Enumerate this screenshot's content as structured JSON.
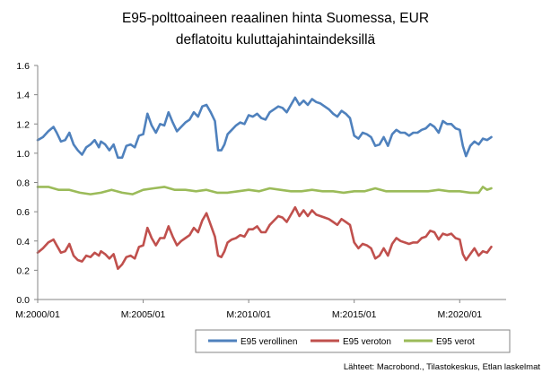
{
  "chart_data": {
    "type": "line",
    "title_line1": "E95-polttoaineen reaalinen hinta Suomessa, EUR",
    "title_line2": "deflatoitu kuluttajahintaindeksillä",
    "xlabel": "",
    "ylabel": "",
    "ylim": [
      0.0,
      1.6
    ],
    "xlim": [
      2000.0,
      2022.2
    ],
    "y_ticks": [
      "0.0",
      "0.2",
      "0.4",
      "0.6",
      "0.8",
      "1.0",
      "1.2",
      "1.4",
      "1.6"
    ],
    "x_ticks": [
      {
        "label": "M:2000/01",
        "value": 2000.0
      },
      {
        "label": "M:2005/01",
        "value": 2005.0
      },
      {
        "label": "M:2010/01",
        "value": 2010.0
      },
      {
        "label": "M:2015/01",
        "value": 2015.0
      },
      {
        "label": "M:2020/01",
        "value": 2020.0
      }
    ],
    "grid": false,
    "legend_position": "bottom-right",
    "source_note": "Lähteet: Macrobond., Tilastokeskus, Etlan laskelmat",
    "series": [
      {
        "name": "E95 verollinen",
        "color": "#4f81bd",
        "x": [
          2000.0,
          2000.25,
          2000.5,
          2000.75,
          2000.9,
          2001.1,
          2001.3,
          2001.5,
          2001.7,
          2001.9,
          2002.1,
          2002.3,
          2002.5,
          2002.7,
          2002.9,
          2003.0,
          2003.2,
          2003.4,
          2003.6,
          2003.8,
          2004.0,
          2004.2,
          2004.4,
          2004.6,
          2004.8,
          2005.0,
          2005.2,
          2005.4,
          2005.6,
          2005.8,
          2006.0,
          2006.2,
          2006.4,
          2006.6,
          2006.8,
          2007.0,
          2007.2,
          2007.4,
          2007.6,
          2007.8,
          2008.0,
          2008.2,
          2008.4,
          2008.55,
          2008.7,
          2008.85,
          2009.0,
          2009.2,
          2009.4,
          2009.6,
          2009.8,
          2010.0,
          2010.2,
          2010.4,
          2010.6,
          2010.8,
          2011.0,
          2011.2,
          2011.4,
          2011.6,
          2011.8,
          2012.0,
          2012.2,
          2012.4,
          2012.6,
          2012.8,
          2013.0,
          2013.2,
          2013.4,
          2013.6,
          2013.8,
          2014.0,
          2014.2,
          2014.4,
          2014.6,
          2014.8,
          2015.0,
          2015.2,
          2015.4,
          2015.6,
          2015.8,
          2016.0,
          2016.2,
          2016.4,
          2016.6,
          2016.8,
          2017.0,
          2017.2,
          2017.4,
          2017.6,
          2017.8,
          2018.0,
          2018.2,
          2018.4,
          2018.6,
          2018.8,
          2019.0,
          2019.2,
          2019.4,
          2019.6,
          2019.8,
          2020.0,
          2020.15,
          2020.3,
          2020.5,
          2020.7,
          2020.9,
          2021.1,
          2021.3,
          2021.5
        ],
        "values": [
          1.09,
          1.11,
          1.15,
          1.18,
          1.14,
          1.08,
          1.09,
          1.14,
          1.06,
          1.02,
          0.99,
          1.04,
          1.06,
          1.09,
          1.04,
          1.08,
          1.06,
          1.02,
          1.06,
          0.97,
          0.97,
          1.05,
          1.06,
          1.04,
          1.12,
          1.13,
          1.27,
          1.19,
          1.14,
          1.2,
          1.19,
          1.28,
          1.21,
          1.15,
          1.18,
          1.21,
          1.23,
          1.28,
          1.25,
          1.32,
          1.33,
          1.28,
          1.22,
          1.02,
          1.02,
          1.06,
          1.13,
          1.16,
          1.19,
          1.21,
          1.2,
          1.26,
          1.25,
          1.27,
          1.24,
          1.23,
          1.28,
          1.3,
          1.32,
          1.31,
          1.28,
          1.33,
          1.38,
          1.33,
          1.36,
          1.33,
          1.37,
          1.35,
          1.34,
          1.32,
          1.3,
          1.27,
          1.25,
          1.29,
          1.27,
          1.24,
          1.12,
          1.1,
          1.14,
          1.13,
          1.11,
          1.05,
          1.06,
          1.11,
          1.05,
          1.13,
          1.16,
          1.14,
          1.14,
          1.12,
          1.14,
          1.14,
          1.16,
          1.17,
          1.2,
          1.18,
          1.14,
          1.22,
          1.2,
          1.2,
          1.17,
          1.16,
          1.05,
          0.98,
          1.05,
          1.08,
          1.06,
          1.1,
          1.09,
          1.11
        ]
      },
      {
        "name": "E95 veroton",
        "color": "#c0504d",
        "x": [
          2000.0,
          2000.25,
          2000.5,
          2000.75,
          2000.9,
          2001.1,
          2001.3,
          2001.5,
          2001.7,
          2001.9,
          2002.1,
          2002.3,
          2002.5,
          2002.7,
          2002.9,
          2003.0,
          2003.2,
          2003.4,
          2003.6,
          2003.8,
          2004.0,
          2004.2,
          2004.4,
          2004.6,
          2004.8,
          2005.0,
          2005.2,
          2005.4,
          2005.6,
          2005.8,
          2006.0,
          2006.2,
          2006.4,
          2006.6,
          2006.8,
          2007.0,
          2007.2,
          2007.4,
          2007.6,
          2007.8,
          2008.0,
          2008.2,
          2008.4,
          2008.55,
          2008.7,
          2008.85,
          2009.0,
          2009.2,
          2009.4,
          2009.6,
          2009.8,
          2010.0,
          2010.2,
          2010.4,
          2010.6,
          2010.8,
          2011.0,
          2011.2,
          2011.4,
          2011.6,
          2011.8,
          2012.0,
          2012.2,
          2012.4,
          2012.6,
          2012.8,
          2013.0,
          2013.2,
          2013.4,
          2013.6,
          2013.8,
          2014.0,
          2014.2,
          2014.4,
          2014.6,
          2014.8,
          2015.0,
          2015.2,
          2015.4,
          2015.6,
          2015.8,
          2016.0,
          2016.2,
          2016.4,
          2016.6,
          2016.8,
          2017.0,
          2017.2,
          2017.4,
          2017.6,
          2017.8,
          2018.0,
          2018.2,
          2018.4,
          2018.6,
          2018.8,
          2019.0,
          2019.2,
          2019.4,
          2019.6,
          2019.8,
          2020.0,
          2020.15,
          2020.3,
          2020.5,
          2020.7,
          2020.9,
          2021.1,
          2021.3,
          2021.5
        ],
        "values": [
          0.32,
          0.35,
          0.39,
          0.41,
          0.37,
          0.32,
          0.33,
          0.38,
          0.3,
          0.27,
          0.26,
          0.3,
          0.29,
          0.32,
          0.3,
          0.33,
          0.31,
          0.28,
          0.31,
          0.21,
          0.24,
          0.29,
          0.3,
          0.28,
          0.36,
          0.37,
          0.49,
          0.42,
          0.37,
          0.42,
          0.42,
          0.5,
          0.43,
          0.37,
          0.4,
          0.42,
          0.44,
          0.49,
          0.46,
          0.54,
          0.59,
          0.51,
          0.43,
          0.3,
          0.29,
          0.33,
          0.39,
          0.41,
          0.42,
          0.44,
          0.43,
          0.48,
          0.48,
          0.5,
          0.46,
          0.46,
          0.51,
          0.54,
          0.57,
          0.56,
          0.53,
          0.58,
          0.63,
          0.57,
          0.61,
          0.57,
          0.61,
          0.58,
          0.57,
          0.56,
          0.55,
          0.53,
          0.51,
          0.55,
          0.53,
          0.51,
          0.39,
          0.35,
          0.38,
          0.37,
          0.35,
          0.28,
          0.3,
          0.35,
          0.3,
          0.38,
          0.42,
          0.4,
          0.39,
          0.38,
          0.39,
          0.39,
          0.42,
          0.43,
          0.47,
          0.46,
          0.41,
          0.45,
          0.44,
          0.45,
          0.42,
          0.41,
          0.31,
          0.27,
          0.31,
          0.35,
          0.3,
          0.33,
          0.32,
          0.36
        ]
      },
      {
        "name": "E95 verot",
        "color": "#9bbb59",
        "x": [
          2000.0,
          2000.5,
          2001.0,
          2001.5,
          2002.0,
          2002.5,
          2003.0,
          2003.5,
          2004.0,
          2004.5,
          2005.0,
          2005.5,
          2006.0,
          2006.5,
          2007.0,
          2007.5,
          2008.0,
          2008.5,
          2009.0,
          2009.5,
          2010.0,
          2010.5,
          2011.0,
          2011.5,
          2012.0,
          2012.5,
          2013.0,
          2013.5,
          2014.0,
          2014.5,
          2015.0,
          2015.5,
          2016.0,
          2016.5,
          2017.0,
          2017.5,
          2018.0,
          2018.5,
          2019.0,
          2019.5,
          2020.0,
          2020.5,
          2020.9,
          2021.1,
          2021.3,
          2021.5
        ],
        "values": [
          0.77,
          0.77,
          0.75,
          0.75,
          0.73,
          0.72,
          0.73,
          0.75,
          0.73,
          0.72,
          0.75,
          0.76,
          0.77,
          0.75,
          0.75,
          0.74,
          0.75,
          0.73,
          0.73,
          0.74,
          0.75,
          0.74,
          0.76,
          0.75,
          0.74,
          0.74,
          0.75,
          0.74,
          0.74,
          0.73,
          0.74,
          0.74,
          0.76,
          0.74,
          0.74,
          0.74,
          0.74,
          0.74,
          0.75,
          0.74,
          0.74,
          0.73,
          0.73,
          0.77,
          0.75,
          0.76
        ]
      }
    ]
  }
}
